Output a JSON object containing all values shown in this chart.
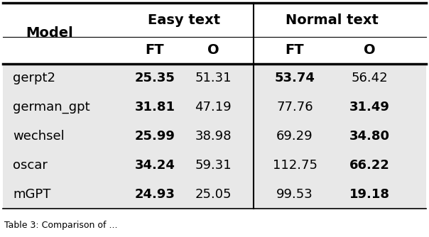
{
  "models": [
    "gerpt2",
    "german_gpt",
    "wechsel",
    "oscar",
    "mGPT"
  ],
  "easy_ft": [
    "25.35",
    "31.81",
    "25.99",
    "34.24",
    "24.93"
  ],
  "easy_o": [
    "51.31",
    "47.19",
    "38.98",
    "59.31",
    "25.05"
  ],
  "normal_ft": [
    "53.74",
    "77.76",
    "69.29",
    "112.75",
    "99.53"
  ],
  "normal_o": [
    "56.42",
    "31.49",
    "34.80",
    "66.22",
    "19.18"
  ],
  "easy_ft_bold": [
    true,
    true,
    true,
    true,
    true
  ],
  "easy_o_bold": [
    false,
    false,
    false,
    false,
    false
  ],
  "normal_ft_bold": [
    true,
    false,
    false,
    false,
    false
  ],
  "normal_o_bold": [
    false,
    true,
    true,
    true,
    true
  ],
  "col_header1": "Easy text",
  "col_header2": "Normal text",
  "subheader_ft": "FT",
  "subheader_o": "O",
  "row_header": "Model",
  "caption": "Table 3: Comparison of ..."
}
